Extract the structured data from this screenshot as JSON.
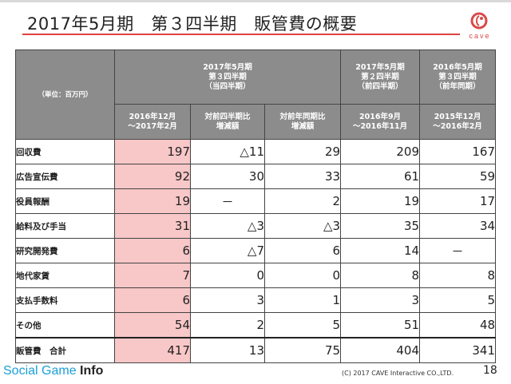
{
  "title": "2017年5月期　第３四半期　販管費の概要",
  "logo": {
    "text": "cave"
  },
  "table": {
    "unit_label": "（単位：百万円）",
    "col_groups": [
      "2017年5月期\n第３四半期\n（当四半期）",
      "2017年5月期\n第２四半期\n（前四半期）",
      "2016年5月期\n第３四半期\n（前年同期）"
    ],
    "sub_headers": [
      "2016年12月\n～2017年2月",
      "対前四半期比\n増減額",
      "対前年同期比\n増減額",
      "2016年9月\n～2016年11月",
      "2015年12月\n～2016年2月"
    ],
    "rows": [
      {
        "label": "回収費",
        "values": [
          "197",
          "△11",
          "29",
          "209",
          "167"
        ]
      },
      {
        "label": "広告宣伝費",
        "values": [
          "92",
          "30",
          "33",
          "61",
          "59"
        ]
      },
      {
        "label": "役員報酬",
        "values": [
          "19",
          "－",
          "2",
          "19",
          "17"
        ]
      },
      {
        "label": "給料及び手当",
        "values": [
          "31",
          "△3",
          "△3",
          "35",
          "34"
        ]
      },
      {
        "label": "研究開発費",
        "values": [
          "6",
          "△7",
          "6",
          "14",
          "－"
        ]
      },
      {
        "label": "地代家賃",
        "values": [
          "7",
          "0",
          "0",
          "8",
          "8"
        ]
      },
      {
        "label": "支払手数料",
        "values": [
          "6",
          "3",
          "1",
          "3",
          "5"
        ]
      },
      {
        "label": "その他",
        "values": [
          "54",
          "2",
          "5",
          "51",
          "48"
        ]
      }
    ],
    "total": {
      "label": "販管費　合計",
      "values": [
        "417",
        "13",
        "75",
        "404",
        "341"
      ]
    }
  },
  "footer": {
    "brand_social": "Social Game ",
    "brand_info": "Info",
    "copyright": "(C) 2017 CAVE Interactive CO.,LTD.",
    "page_number": "18"
  }
}
